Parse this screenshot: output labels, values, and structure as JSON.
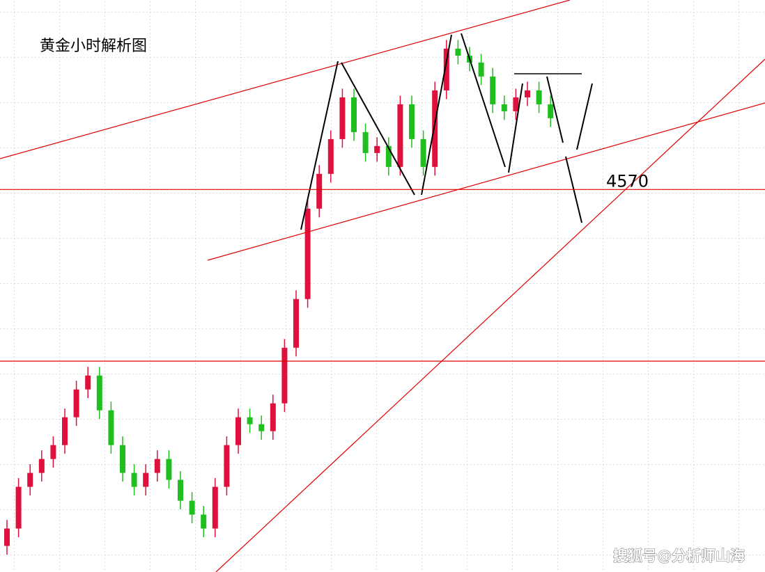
{
  "chart_data": {
    "type": "candlestick",
    "title": "黄金小时解析图",
    "watermark": "搜狐号@分析师山海",
    "open": [
      4365,
      4375,
      4399,
      4407,
      4415,
      4423,
      4439,
      4455,
      4463,
      4443,
      4423,
      4407,
      4399,
      4407,
      4415,
      4403,
      4391,
      4383,
      4375,
      4399,
      4423,
      4439,
      4435,
      4431,
      4447,
      4479,
      4507,
      4559,
      4579,
      4599,
      4623,
      4603,
      4591,
      4595,
      4583,
      4619,
      4599,
      4583,
      4627,
      4651,
      4647,
      4643,
      4635,
      4619,
      4615,
      4623,
      4627,
      4619
    ],
    "high": [
      4380,
      4404,
      4412,
      4420,
      4428,
      4444,
      4460,
      4468,
      4468,
      4448,
      4428,
      4412,
      4412,
      4420,
      4420,
      4408,
      4396,
      4388,
      4404,
      4428,
      4444,
      4444,
      4440,
      4452,
      4484,
      4512,
      4564,
      4584,
      4604,
      4628,
      4628,
      4608,
      4600,
      4600,
      4624,
      4624,
      4604,
      4632,
      4656,
      4656,
      4652,
      4648,
      4640,
      4624,
      4628,
      4632,
      4632,
      4624
    ],
    "low": [
      4360,
      4370,
      4394,
      4402,
      4410,
      4418,
      4434,
      4450,
      4438,
      4418,
      4402,
      4394,
      4394,
      4402,
      4398,
      4386,
      4378,
      4370,
      4370,
      4394,
      4418,
      4430,
      4426,
      4426,
      4442,
      4474,
      4502,
      4554,
      4574,
      4594,
      4598,
      4586,
      4586,
      4578,
      4578,
      4594,
      4578,
      4578,
      4622,
      4642,
      4638,
      4630,
      4614,
      4610,
      4610,
      4618,
      4614,
      4606
    ],
    "close": [
      4375,
      4399,
      4407,
      4415,
      4423,
      4439,
      4455,
      4463,
      4443,
      4423,
      4407,
      4399,
      4407,
      4415,
      4403,
      4391,
      4383,
      4375,
      4399,
      4423,
      4439,
      4435,
      4431,
      4447,
      4479,
      4507,
      4559,
      4579,
      4599,
      4623,
      4603,
      4591,
      4595,
      4583,
      4619,
      4599,
      4583,
      4627,
      4651,
      4647,
      4643,
      4635,
      4619,
      4615,
      4623,
      4627,
      4619,
      4611
    ],
    "up_color": "#e0103c",
    "down_color": "#1fbf1f",
    "ylim": [
      4350,
      4679
    ],
    "levels": [
      4570
    ],
    "level_color": "#e00000"
  }
}
